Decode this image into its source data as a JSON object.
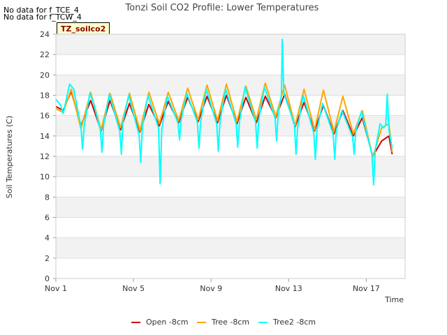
{
  "notes": [
    "No data for f_TCE_4",
    "No data for f_TCW_4"
  ],
  "badge": "TZ_soilco2",
  "chart_data": {
    "type": "line",
    "title": "Tonzi Soil CO2 Profile: Lower Temperatures",
    "xlabel": "Time",
    "ylabel": "Soil Temperatures (C)",
    "ylim": [
      0,
      24
    ],
    "yticks": [
      0,
      2,
      4,
      6,
      8,
      10,
      12,
      14,
      16,
      18,
      20,
      22,
      24
    ],
    "xlim": [
      "2023-11-01",
      "2023-11-19"
    ],
    "xtick_labels": [
      "Nov 1",
      "Nov 5",
      "Nov 9",
      "Nov 13",
      "Nov 17"
    ],
    "legend_position": "bottom-center",
    "grid": true,
    "series": [
      {
        "name": "Open -8cm",
        "color": "#cc0000",
        "x": [
          "2023-11-01T00:00",
          "2023-11-01T09:00",
          "2023-11-01T19:00",
          "2023-11-02T07:00",
          "2023-11-02T19:00",
          "2023-11-03T08:00",
          "2023-11-03T19:00",
          "2023-11-04T08:00",
          "2023-11-04T19:00",
          "2023-11-05T08:00",
          "2023-11-05T19:00",
          "2023-11-06T08:00",
          "2023-11-06T19:00",
          "2023-11-07T08:00",
          "2023-11-07T19:00",
          "2023-11-08T08:00",
          "2023-11-08T19:00",
          "2023-11-09T08:00",
          "2023-11-09T19:00",
          "2023-11-10T08:00",
          "2023-11-10T19:00",
          "2023-11-11T08:00",
          "2023-11-11T19:00",
          "2023-11-12T08:00",
          "2023-11-12T19:00",
          "2023-11-13T08:00",
          "2023-11-13T19:00",
          "2023-11-14T08:00",
          "2023-11-14T19:00",
          "2023-11-15T08:00",
          "2023-11-15T19:00",
          "2023-11-16T08:00",
          "2023-11-16T19:00",
          "2023-11-17T08:00",
          "2023-11-17T19:00",
          "2023-11-18T04:00",
          "2023-11-18T08:00"
        ],
        "y": [
          16.9,
          16.5,
          18.4,
          15.0,
          17.5,
          14.5,
          17.5,
          14.6,
          17.2,
          14.4,
          17.1,
          15.0,
          17.4,
          15.3,
          17.8,
          15.4,
          17.9,
          15.3,
          18.0,
          15.2,
          17.8,
          15.3,
          17.9,
          15.8,
          18.1,
          14.9,
          17.3,
          14.5,
          17.0,
          14.2,
          16.5,
          14.0,
          15.8,
          12.0,
          13.5,
          14.0,
          12.2
        ]
      },
      {
        "name": "Tree -8cm",
        "color": "#ffa500",
        "x": [
          "2023-11-01T00:00",
          "2023-11-01T09:00",
          "2023-11-01T19:00",
          "2023-11-02T07:00",
          "2023-11-02T19:00",
          "2023-11-03T08:00",
          "2023-11-03T19:00",
          "2023-11-04T08:00",
          "2023-11-04T19:00",
          "2023-11-05T08:00",
          "2023-11-05T19:00",
          "2023-11-06T08:00",
          "2023-11-06T19:00",
          "2023-11-07T08:00",
          "2023-11-07T19:00",
          "2023-11-08T08:00",
          "2023-11-08T19:00",
          "2023-11-09T08:00",
          "2023-11-09T19:00",
          "2023-11-10T08:00",
          "2023-11-10T19:00",
          "2023-11-11T08:00",
          "2023-11-11T19:00",
          "2023-11-12T08:00",
          "2023-11-12T19:00",
          "2023-11-13T08:00",
          "2023-11-13T19:00",
          "2023-11-14T08:00",
          "2023-11-14T19:00",
          "2023-11-15T08:00",
          "2023-11-15T19:00",
          "2023-11-16T08:00",
          "2023-11-16T19:00",
          "2023-11-17T08:00",
          "2023-11-17T19:00",
          "2023-11-18T04:00",
          "2023-11-18T08:00"
        ],
        "y": [
          16.7,
          16.3,
          18.6,
          14.7,
          18.3,
          14.6,
          18.2,
          14.8,
          18.2,
          14.5,
          18.3,
          15.2,
          18.3,
          15.5,
          18.7,
          15.6,
          19.0,
          15.5,
          19.1,
          15.4,
          18.9,
          15.6,
          19.2,
          15.9,
          19.0,
          15.0,
          18.6,
          14.6,
          18.5,
          14.4,
          17.9,
          14.2,
          16.5,
          11.9,
          14.8,
          15.2,
          12.4
        ]
      },
      {
        "name": "Tree2 -8cm",
        "color": "#00ffff",
        "x": [
          "2023-11-01T00:00",
          "2023-11-01T06:00",
          "2023-11-01T09:00",
          "2023-11-01T17:00",
          "2023-11-01T22:00",
          "2023-11-02T07:00",
          "2023-11-02T09:00",
          "2023-11-02T11:00",
          "2023-11-02T18:00",
          "2023-11-02T22:00",
          "2023-11-03T07:00",
          "2023-11-03T09:00",
          "2023-11-03T11:00",
          "2023-11-03T18:00",
          "2023-11-04T07:00",
          "2023-11-04T09:00",
          "2023-11-04T11:00",
          "2023-11-04T18:00",
          "2023-11-05T07:00",
          "2023-11-05T09:00",
          "2023-11-05T11:00",
          "2023-11-05T18:00",
          "2023-11-06T07:00",
          "2023-11-06T09:00",
          "2023-11-06T11:00",
          "2023-11-06T18:00",
          "2023-11-07T07:00",
          "2023-11-07T09:00",
          "2023-11-07T11:00",
          "2023-11-07T18:00",
          "2023-11-08T07:00",
          "2023-11-08T09:00",
          "2023-11-08T11:00",
          "2023-11-08T18:00",
          "2023-11-09T07:00",
          "2023-11-09T09:00",
          "2023-11-09T11:00",
          "2023-11-09T18:00",
          "2023-11-10T07:00",
          "2023-11-10T09:00",
          "2023-11-10T11:00",
          "2023-11-10T18:00",
          "2023-11-11T07:00",
          "2023-11-11T09:00",
          "2023-11-11T11:00",
          "2023-11-11T18:00",
          "2023-11-12T07:00",
          "2023-11-12T09:00",
          "2023-11-12T11:00",
          "2023-11-12T15:00",
          "2023-11-12T16:00",
          "2023-11-12T18:00",
          "2023-11-13T07:00",
          "2023-11-13T09:00",
          "2023-11-13T11:00",
          "2023-11-13T18:00",
          "2023-11-14T07:00",
          "2023-11-14T09:00",
          "2023-11-14T11:00",
          "2023-11-14T18:00",
          "2023-11-15T07:00",
          "2023-11-15T09:00",
          "2023-11-15T11:00",
          "2023-11-15T18:00",
          "2023-11-16T07:00",
          "2023-11-16T09:00",
          "2023-11-16T11:00",
          "2023-11-16T18:00",
          "2023-11-17T07:00",
          "2023-11-17T09:00",
          "2023-11-17T11:00",
          "2023-11-17T17:00",
          "2023-11-17T21:00",
          "2023-11-18T00:00",
          "2023-11-18T02:00",
          "2023-11-18T04:00",
          "2023-11-18T08:00"
        ],
        "y": [
          17.6,
          17.0,
          16.2,
          19.1,
          18.6,
          14.9,
          12.7,
          15.0,
          18.2,
          17.4,
          14.6,
          12.4,
          15.0,
          18.1,
          14.5,
          12.2,
          15.4,
          18.0,
          14.1,
          11.4,
          14.9,
          18.0,
          14.8,
          9.3,
          14.6,
          17.9,
          15.3,
          13.6,
          15.6,
          18.2,
          15.4,
          12.8,
          15.4,
          18.6,
          15.2,
          12.5,
          15.5,
          18.6,
          15.2,
          12.9,
          15.3,
          18.8,
          15.4,
          12.8,
          15.6,
          18.8,
          15.8,
          13.5,
          16.2,
          18.0,
          23.5,
          18.2,
          15.2,
          12.2,
          14.8,
          18.0,
          14.3,
          11.7,
          14.6,
          17.2,
          14.2,
          11.7,
          14.6,
          16.5,
          13.9,
          12.2,
          14.5,
          16.4,
          12.2,
          9.2,
          12.6,
          15.2,
          14.8,
          15.0,
          18.1,
          14.6,
          12.8
        ]
      }
    ]
  }
}
